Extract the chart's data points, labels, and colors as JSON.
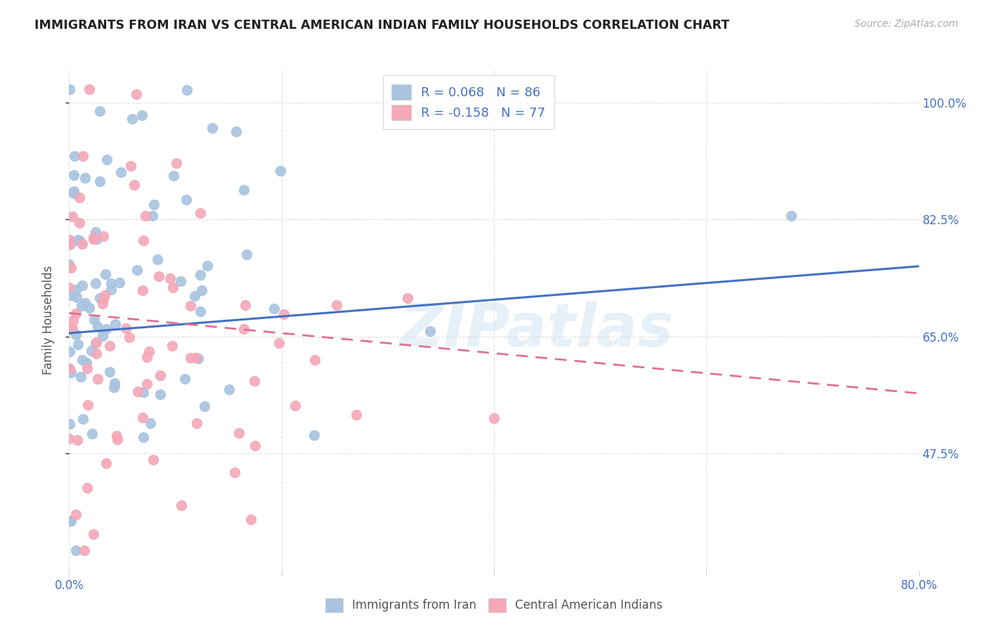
{
  "title": "IMMIGRANTS FROM IRAN VS CENTRAL AMERICAN INDIAN FAMILY HOUSEHOLDS CORRELATION CHART",
  "source": "Source: ZipAtlas.com",
  "ylabel": "Family Households",
  "legend1_label": "Immigrants from Iran",
  "legend2_label": "Central American Indians",
  "R1": 0.068,
  "N1": 86,
  "R2": -0.158,
  "N2": 77,
  "color1": "#a8c4e0",
  "color2": "#f4a8b8",
  "line1_color": "#4472c4",
  "line2_color": "#e07090",
  "watermark": "ZIPatlas",
  "axis_color": "#4472c4",
  "legend_R_color": "#4472c4",
  "background_color": "#ffffff",
  "xlim": [
    0.0,
    0.8
  ],
  "ylim": [
    0.3,
    1.05
  ],
  "ytick_vals": [
    0.475,
    0.65,
    0.825,
    1.0
  ],
  "ytick_labels": [
    "47.5%",
    "65.0%",
    "82.5%",
    "100.0%"
  ]
}
